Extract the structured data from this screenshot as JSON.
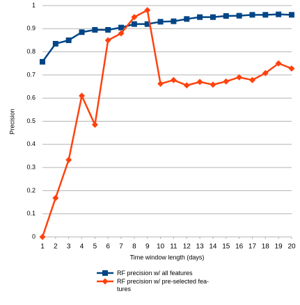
{
  "chart_data": {
    "type": "line",
    "y_label": "Precision",
    "x_label": "Time window length (days)",
    "x": [
      1,
      2,
      3,
      4,
      5,
      6,
      7,
      8,
      9,
      10,
      11,
      12,
      13,
      14,
      15,
      16,
      17,
      18,
      19,
      20
    ],
    "series": [
      {
        "name": "RF precision w/ all features",
        "color": "#004586",
        "marker": "square",
        "values": [
          0.757,
          0.835,
          0.85,
          0.885,
          0.895,
          0.895,
          0.905,
          0.92,
          0.92,
          0.93,
          0.932,
          0.942,
          0.95,
          0.95,
          0.955,
          0.956,
          0.96,
          0.96,
          0.962,
          0.96
        ]
      },
      {
        "name": "RF precision w/ pre-selected fea-\ntures",
        "color": "#ff420e",
        "marker": "diamond",
        "values": [
          0,
          0.168,
          0.333,
          0.61,
          0.485,
          0.85,
          0.88,
          0.95,
          0.98,
          0.662,
          0.678,
          0.655,
          0.67,
          0.658,
          0.672,
          0.69,
          0.678,
          0.708,
          0.75,
          0.728
        ]
      }
    ],
    "xlim": [
      1,
      20
    ],
    "xticks": [
      1,
      2,
      3,
      4,
      5,
      6,
      7,
      8,
      9,
      10,
      11,
      12,
      13,
      14,
      15,
      16,
      17,
      18,
      19,
      20
    ],
    "ylim": [
      0,
      1
    ],
    "yticks": [
      0,
      0.1,
      0.2,
      0.3,
      0.4,
      0.5,
      0.6,
      0.7,
      0.8,
      0.9,
      1
    ],
    "grid": true,
    "legend": "bottom"
  }
}
